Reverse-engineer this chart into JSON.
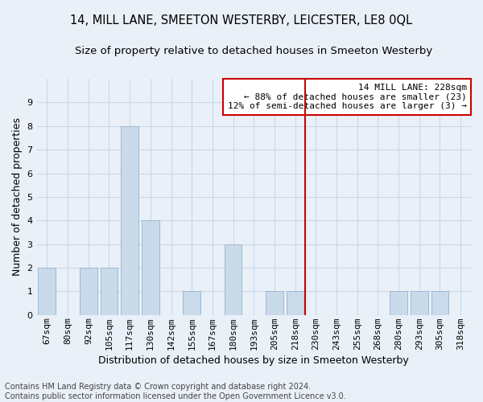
{
  "title": "14, MILL LANE, SMEETON WESTERBY, LEICESTER, LE8 0QL",
  "subtitle": "Size of property relative to detached houses in Smeeton Westerby",
  "xlabel": "Distribution of detached houses by size in Smeeton Westerby",
  "ylabel": "Number of detached properties",
  "bin_labels": [
    "67sqm",
    "80sqm",
    "92sqm",
    "105sqm",
    "117sqm",
    "130sqm",
    "142sqm",
    "155sqm",
    "167sqm",
    "180sqm",
    "193sqm",
    "205sqm",
    "218sqm",
    "230sqm",
    "243sqm",
    "255sqm",
    "268sqm",
    "280sqm",
    "293sqm",
    "305sqm",
    "318sqm"
  ],
  "bar_values": [
    2,
    0,
    2,
    2,
    8,
    4,
    0,
    1,
    0,
    3,
    0,
    1,
    1,
    0,
    0,
    0,
    0,
    1,
    1,
    1,
    0
  ],
  "bar_color": "#c9daea",
  "bar_edge_color": "#a0b8d0",
  "grid_color": "#c8d8e8",
  "background_color": "#eaf0f8",
  "vline_x": 12.5,
  "vline_color": "#cc0000",
  "annotation_line1": "14 MILL LANE: 228sqm",
  "annotation_line2": "← 88% of detached houses are smaller (23)",
  "annotation_line3": "12% of semi-detached houses are larger (3) →",
  "annotation_box_color": "#ffffff",
  "annotation_box_edge": "#cc0000",
  "ylim": [
    0,
    10
  ],
  "yticks": [
    0,
    1,
    2,
    3,
    4,
    5,
    6,
    7,
    8,
    9
  ],
  "footnote": "Contains HM Land Registry data © Crown copyright and database right 2024.\nContains public sector information licensed under the Open Government Licence v3.0.",
  "title_fontsize": 10.5,
  "subtitle_fontsize": 9.5,
  "xlabel_fontsize": 9,
  "ylabel_fontsize": 9,
  "tick_fontsize": 8,
  "annot_fontsize": 8,
  "footnote_fontsize": 7
}
